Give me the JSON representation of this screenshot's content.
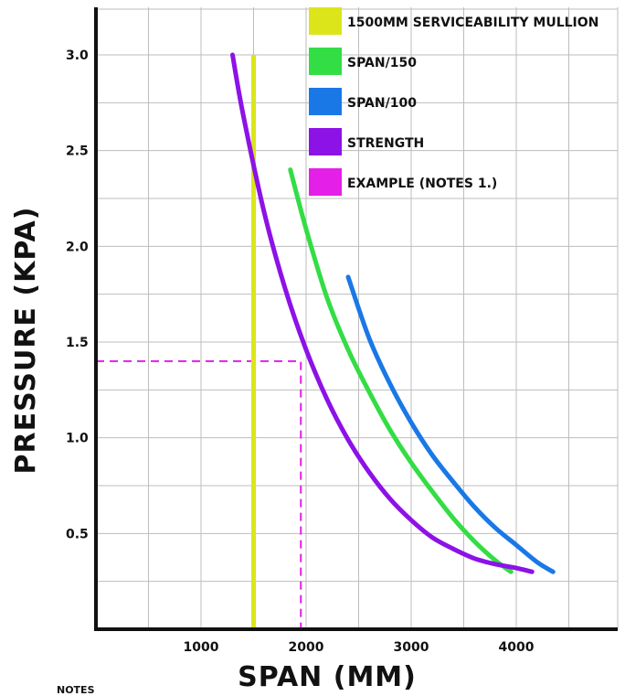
{
  "chart_data": {
    "type": "line",
    "xlabel": "SPAN (MM)",
    "ylabel": "PRESSURE (KPA)",
    "xlim": [
      0,
      5000
    ],
    "ylim": [
      0,
      3.0
    ],
    "x_ticks": [
      1000,
      2000,
      3000,
      4000
    ],
    "x_tick_labels": [
      "1000",
      "2000",
      "3000",
      "4000"
    ],
    "y_ticks": [
      0.5,
      1.0,
      1.5,
      2.0,
      2.5,
      3.0
    ],
    "y_tick_labels": [
      "0.5",
      "1.0",
      "1.5",
      "2.0",
      "2.5",
      "3.0"
    ],
    "grid": true,
    "legend_position": "top-right",
    "series": [
      {
        "name": "1500MM SERVICEABILITY MULLION",
        "color": "#dce51a",
        "style": "solid",
        "points": [
          [
            1500,
            0.0
          ],
          [
            1500,
            3.0
          ]
        ]
      },
      {
        "name": "SPAN/150",
        "color": "#33dd44",
        "style": "solid",
        "points": [
          [
            1850,
            2.4
          ],
          [
            2000,
            2.09
          ],
          [
            2200,
            1.73
          ],
          [
            2400,
            1.46
          ],
          [
            2600,
            1.24
          ],
          [
            2800,
            1.04
          ],
          [
            3000,
            0.87
          ],
          [
            3200,
            0.72
          ],
          [
            3400,
            0.58
          ],
          [
            3600,
            0.46
          ],
          [
            3800,
            0.36
          ],
          [
            3950,
            0.3
          ]
        ]
      },
      {
        "name": "SPAN/100",
        "color": "#1a78e6",
        "style": "solid",
        "points": [
          [
            2400,
            1.84
          ],
          [
            2600,
            1.52
          ],
          [
            2800,
            1.28
          ],
          [
            3000,
            1.08
          ],
          [
            3200,
            0.91
          ],
          [
            3400,
            0.77
          ],
          [
            3600,
            0.64
          ],
          [
            3800,
            0.53
          ],
          [
            4000,
            0.44
          ],
          [
            4200,
            0.35
          ],
          [
            4350,
            0.3
          ]
        ]
      },
      {
        "name": "STRENGTH",
        "color": "#8d12e6",
        "style": "solid",
        "points": [
          [
            1300,
            3.0
          ],
          [
            1400,
            2.69
          ],
          [
            1600,
            2.18
          ],
          [
            1800,
            1.78
          ],
          [
            2000,
            1.46
          ],
          [
            2200,
            1.2
          ],
          [
            2400,
            0.99
          ],
          [
            2600,
            0.82
          ],
          [
            2800,
            0.68
          ],
          [
            3000,
            0.57
          ],
          [
            3200,
            0.48
          ],
          [
            3400,
            0.42
          ],
          [
            3600,
            0.37
          ],
          [
            3800,
            0.34
          ],
          [
            4000,
            0.32
          ],
          [
            4150,
            0.3
          ]
        ]
      },
      {
        "name": "EXAMPLE (NOTES 1.)",
        "color": "#e41fe8",
        "style": "dashed",
        "points": [
          [
            0,
            1.4
          ],
          [
            1950,
            1.4
          ],
          [
            1950,
            0.0
          ]
        ]
      }
    ]
  },
  "footer_note": "NOTES"
}
